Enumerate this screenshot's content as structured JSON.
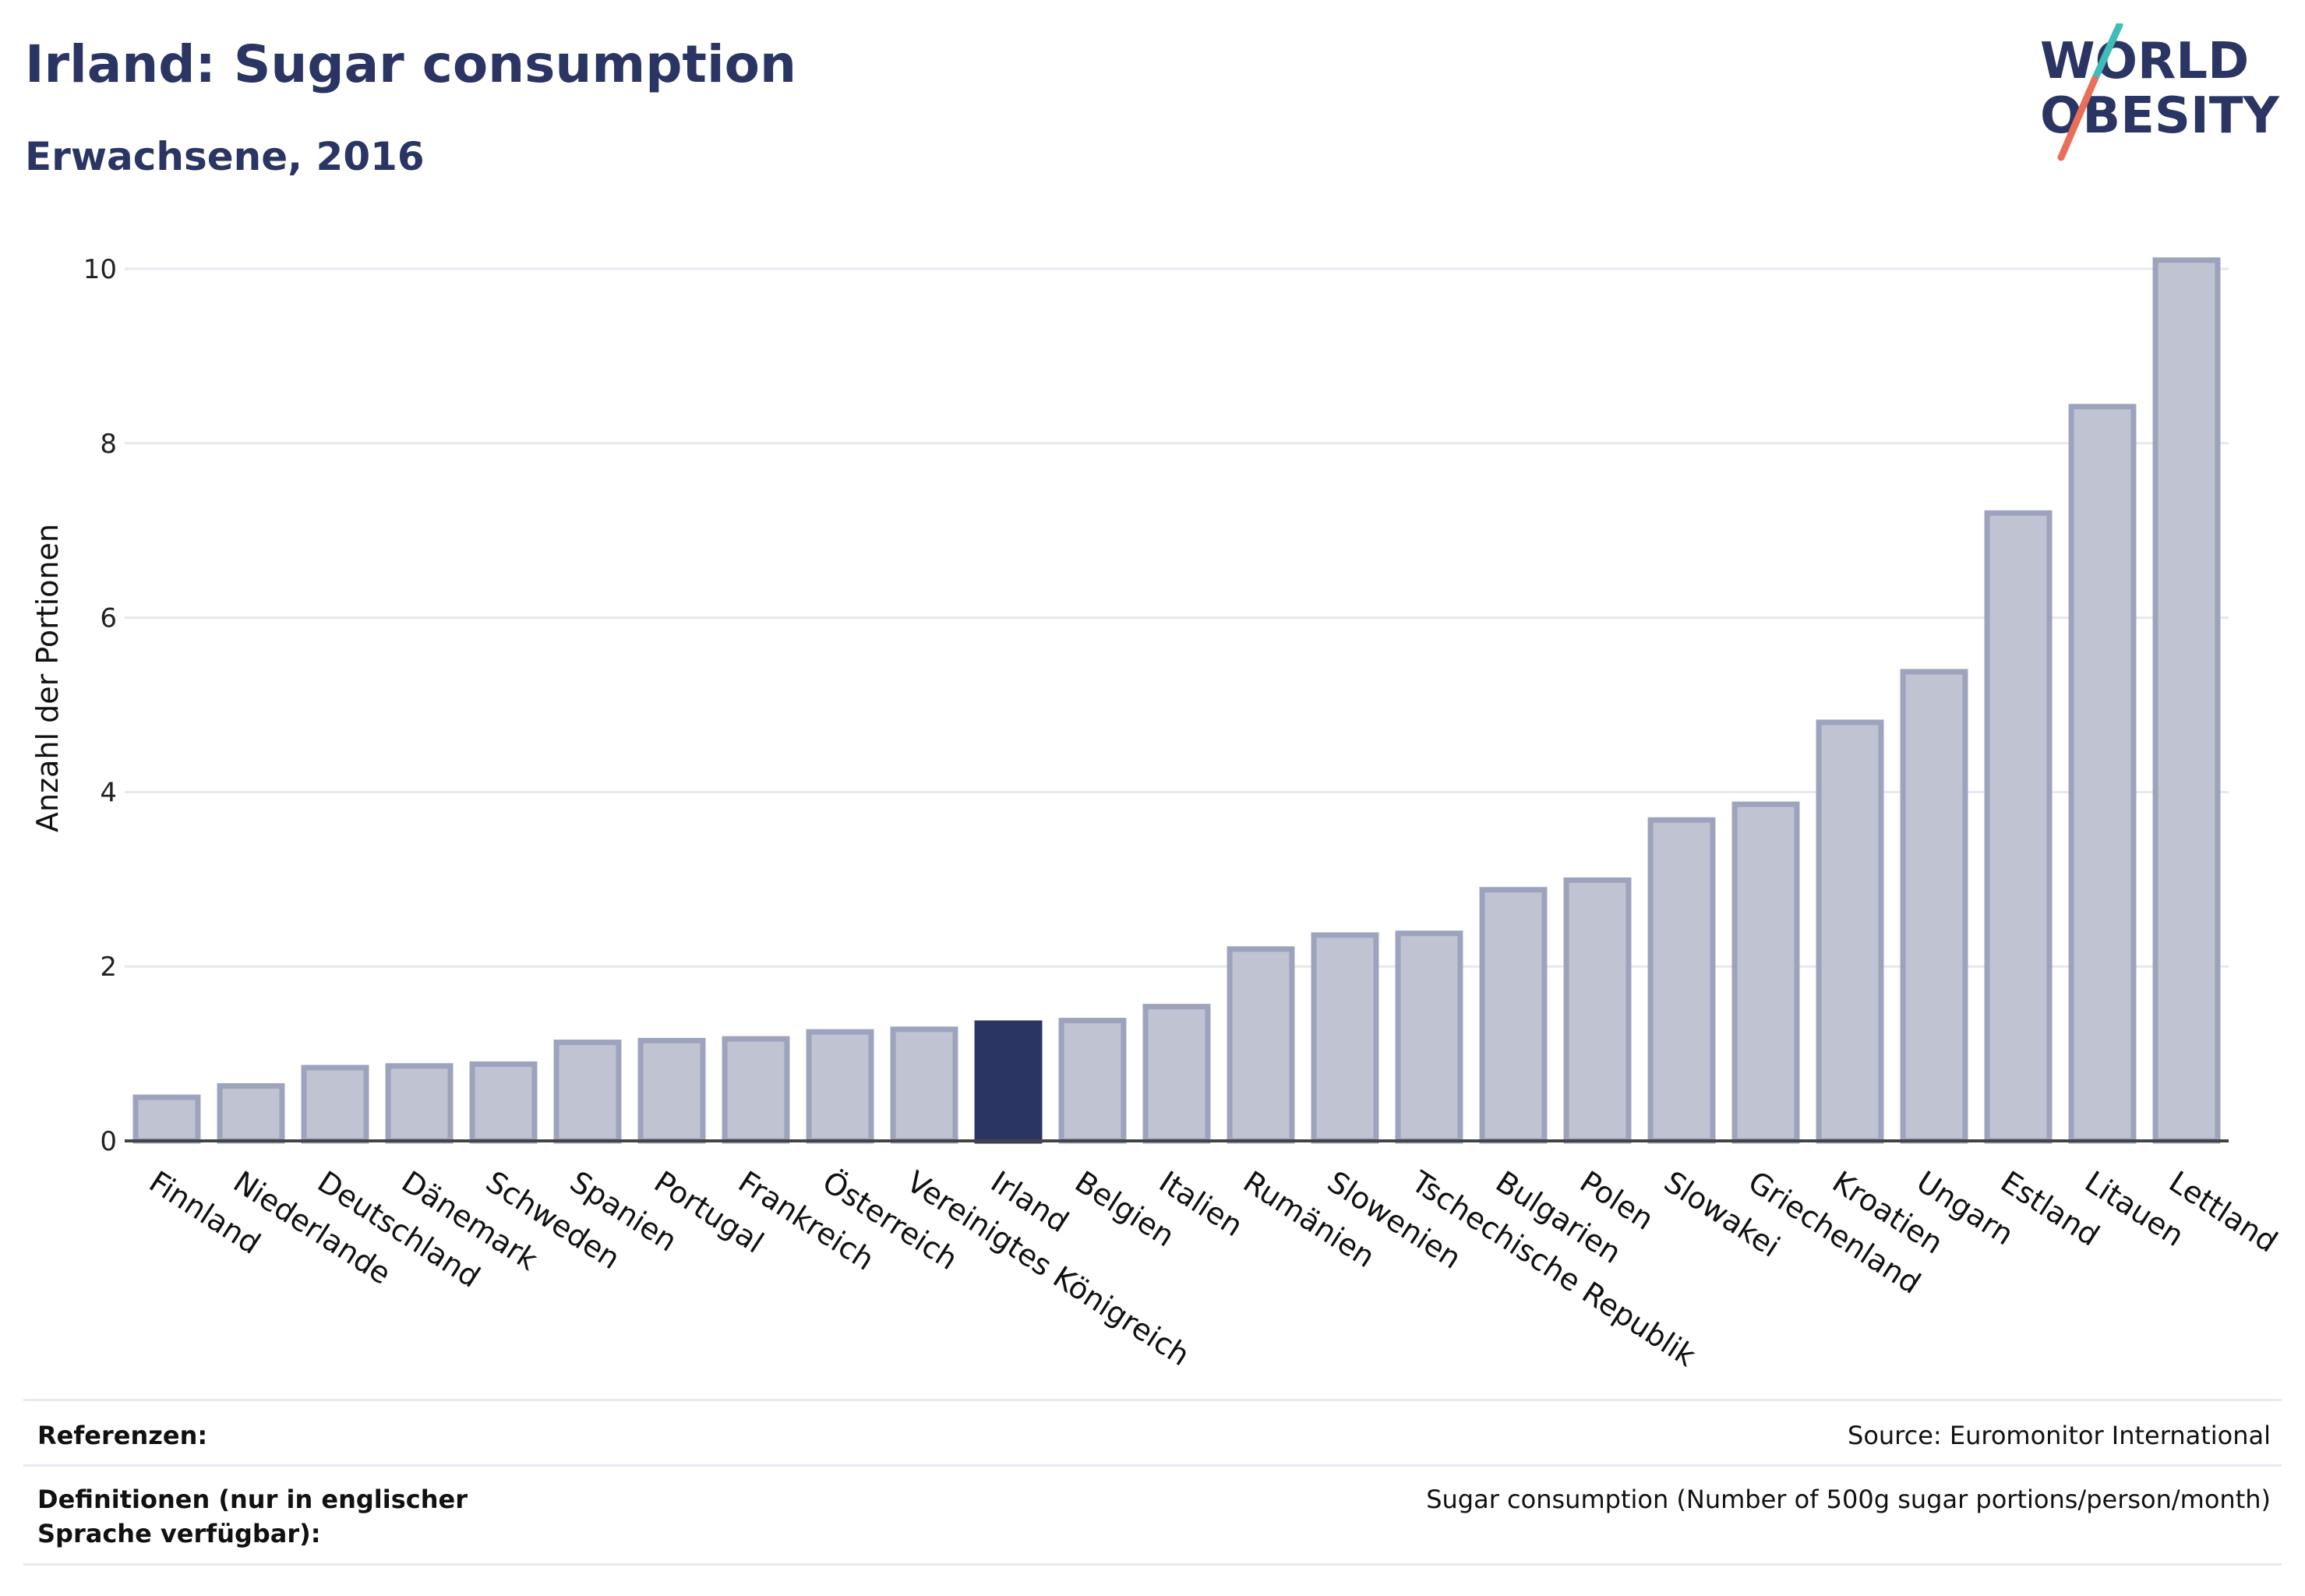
{
  "header": {
    "title": "Irland: Sugar consumption",
    "subtitle": "Erwachsene, 2016"
  },
  "logo": {
    "line1": "WORLD",
    "line2": "OBESITY",
    "text_color": "#2a3563",
    "accent_teal": "#3fbcb8",
    "accent_coral": "#e8705a"
  },
  "chart_data": {
    "type": "bar",
    "categories": [
      "Finnland",
      "Niederlande",
      "Deutschland",
      "Dänemark",
      "Schweden",
      "Spanien",
      "Portugal",
      "Frankreich",
      "Österreich",
      "Vereinigtes Königreich",
      "Irland",
      "Belgien",
      "Italien",
      "Rumänien",
      "Slowenien",
      "Tschechische Republik",
      "Bulgarien",
      "Polen",
      "Slowakei",
      "Griechenland",
      "Kroatien",
      "Ungarn",
      "Estland",
      "Litauen",
      "Lettland"
    ],
    "values": [
      0.5,
      0.63,
      0.84,
      0.86,
      0.88,
      1.13,
      1.15,
      1.17,
      1.25,
      1.28,
      1.35,
      1.38,
      1.54,
      2.2,
      2.36,
      2.38,
      2.88,
      2.99,
      3.68,
      3.86,
      4.8,
      5.38,
      7.2,
      8.42,
      10.1
    ],
    "highlight": "Irland",
    "ylabel": "Anzahl der Portionen",
    "xlabel": "",
    "ylim": [
      0,
      10.5
    ],
    "yticks": [
      0,
      2,
      4,
      6,
      8,
      10
    ],
    "grid": true,
    "colors": {
      "bar_fill": "#bfc3d2",
      "bar_stroke": "#9da3bc",
      "highlight_fill": "#2a3563",
      "grid": "#e6e8f0",
      "axis": "#444444"
    }
  },
  "footer": {
    "references_label": "Referenzen:",
    "references_value": "Source: Euromonitor International",
    "definitions_label": "Definitionen (nur in englischer Sprache verfügbar):",
    "definitions_value": "Sugar consumption (Number of 500g sugar portions/person/month)"
  }
}
